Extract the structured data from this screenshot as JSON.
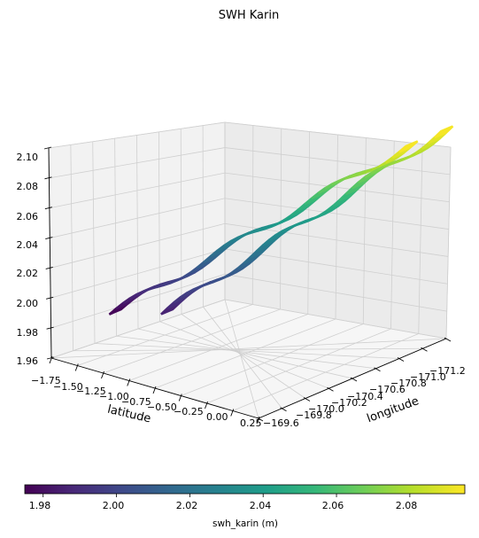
{
  "chart_data": {
    "type": "surface3d",
    "title": "SWH Karin",
    "xlabel": "latitude",
    "ylabel": "longitude",
    "zlabel": "",
    "x_ticks": [
      "−1.75",
      "−1.50",
      "−1.25",
      "−1.00",
      "−0.75",
      "−0.50",
      "−0.25",
      "0.00",
      "0.25"
    ],
    "y_ticks": [
      "−169.6",
      "−169.8",
      "−170.0",
      "−170.2",
      "−170.4",
      "−170.6",
      "−170.8",
      "−171.0",
      "−171.2"
    ],
    "z_ticks": [
      "1.96",
      "1.98",
      "2.00",
      "2.02",
      "2.04",
      "2.06",
      "2.08",
      "2.10"
    ],
    "xlim": [
      -1.75,
      0.25
    ],
    "ylim": [
      -169.6,
      -171.2
    ],
    "zlim": [
      1.96,
      2.1
    ],
    "grid": true,
    "colormap": "viridis",
    "series": [
      {
        "swath": "left",
        "start": {
          "latitude": -1.7,
          "longitude": -170.1,
          "swh": 1.975
        },
        "end": {
          "latitude": 0.2,
          "longitude": -170.95,
          "swh": 2.095
        }
      },
      {
        "swath": "right",
        "start": {
          "latitude": -1.2,
          "longitude": -170.1,
          "swh": 1.985
        },
        "end": {
          "latitude": 0.2,
          "longitude": -171.25,
          "swh": 2.095
        }
      }
    ],
    "colorbar": {
      "label": "swh_karin (m)",
      "ticks": [
        "1.98",
        "2.00",
        "2.02",
        "2.04",
        "2.06",
        "2.08"
      ],
      "range": [
        1.975,
        2.095
      ],
      "colors": [
        "#440154",
        "#482878",
        "#3e4989",
        "#31688e",
        "#26828e",
        "#1f9e89",
        "#35b779",
        "#6ece58",
        "#b5de2b",
        "#fde725"
      ]
    }
  }
}
